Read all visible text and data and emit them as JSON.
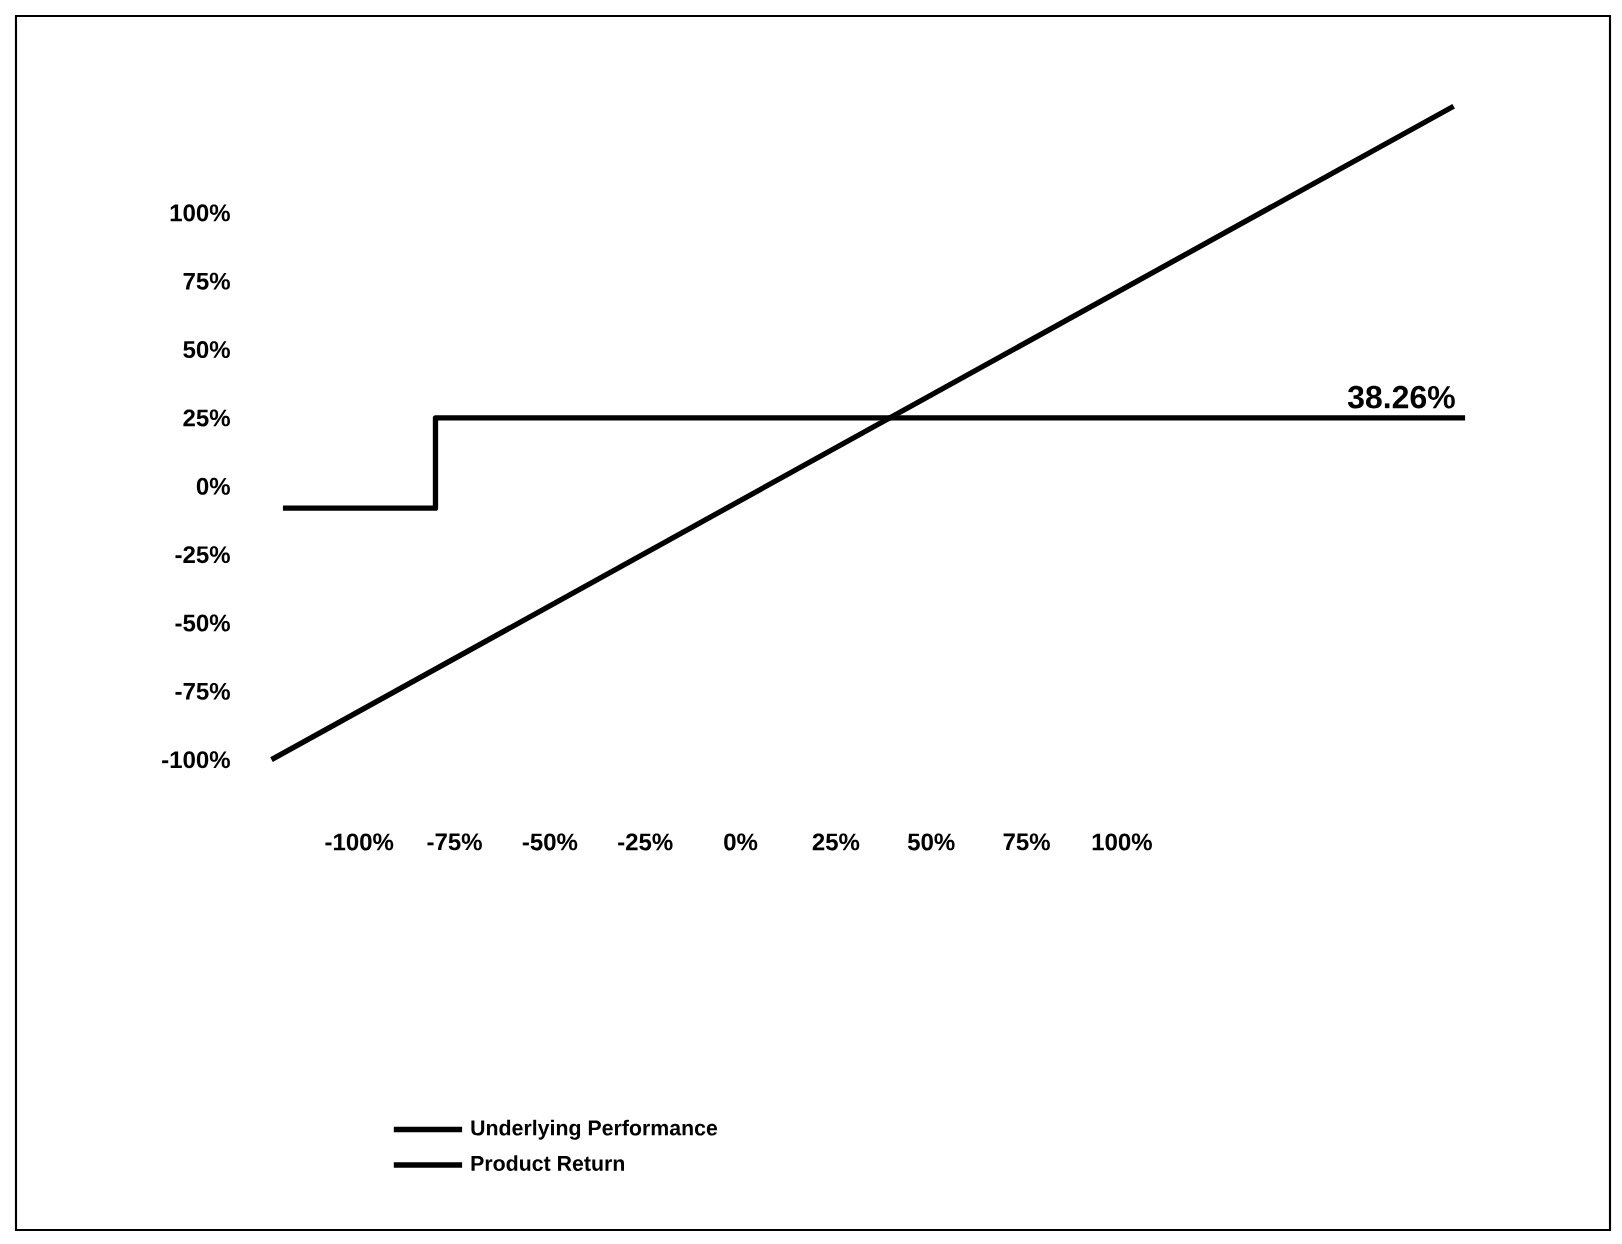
{
  "chart_data": {
    "type": "line",
    "xlim": [
      -190,
      228
    ],
    "ylim": [
      -272,
      172
    ],
    "xticks": [
      {
        "value": -100,
        "label": "-100%"
      },
      {
        "value": -75,
        "label": "-75%"
      },
      {
        "value": -50,
        "label": "-50%"
      },
      {
        "value": -25,
        "label": "-25%"
      },
      {
        "value": 0,
        "label": "0%"
      },
      {
        "value": 25,
        "label": "25%"
      },
      {
        "value": 50,
        "label": "50%"
      },
      {
        "value": 75,
        "label": "75%"
      },
      {
        "value": 100,
        "label": "100%"
      }
    ],
    "yticks": [
      {
        "value": -100,
        "label": "-100%"
      },
      {
        "value": -75,
        "label": "-75%"
      },
      {
        "value": -50,
        "label": "-50%"
      },
      {
        "value": -25,
        "label": "-25%"
      },
      {
        "value": 0,
        "label": "0%"
      },
      {
        "value": 25,
        "label": "25%"
      },
      {
        "value": 50,
        "label": "50%"
      },
      {
        "value": 75,
        "label": "75%"
      },
      {
        "value": 100,
        "label": "100%"
      }
    ],
    "series": [
      {
        "name": "Underlying Performance",
        "color": "#000000",
        "x": [
          -123,
          187
        ],
        "values": [
          -100,
          139
        ]
      },
      {
        "name": "Product Return",
        "color": "#000000",
        "x": [
          -120,
          -80,
          -80,
          190
        ],
        "values": [
          -8,
          -8,
          25,
          25
        ]
      }
    ],
    "annotations": [
      "38.26%"
    ],
    "legend": "bottom",
    "grid": false,
    "marker": "none",
    "line_style": "solid"
  }
}
